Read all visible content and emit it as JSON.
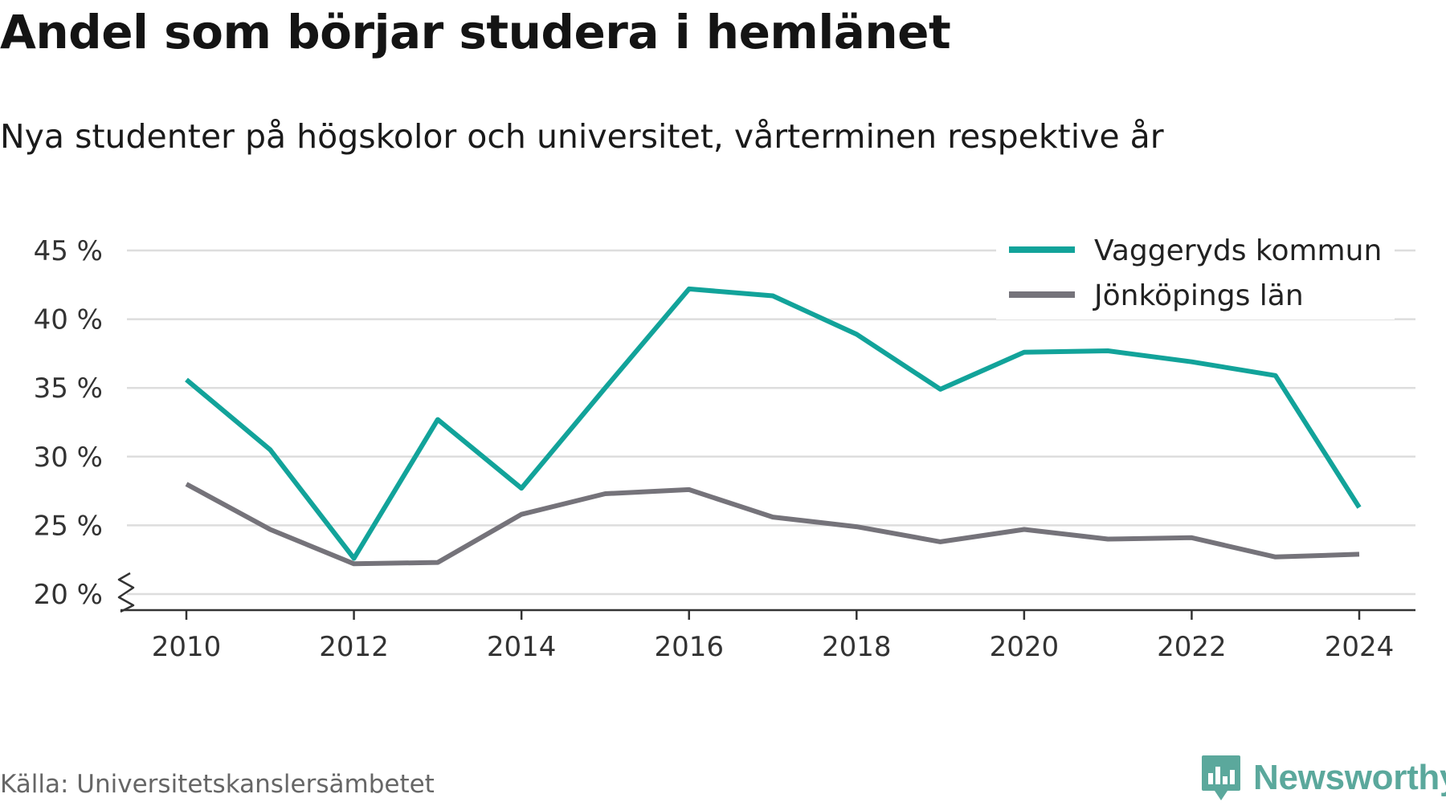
{
  "header": {
    "title": "Andel som börjar studera i hemlänet",
    "subtitle": "Nya studenter på högskolor och universitet, vårterminen respektive år"
  },
  "footer": {
    "source": "Källa: Universitetskanslersämbetet",
    "brand": "Newsworthy",
    "brand_icon": "bar-chart-pin-icon"
  },
  "colors": {
    "vaggeryd": "#12a39a",
    "jonkoping": "#75737a",
    "grid": "#dddddd",
    "axis": "#333333",
    "brand": "#5ba89c"
  },
  "chart_data": {
    "type": "line",
    "title": "Andel som börjar studera i hemlänet",
    "subtitle": "Nya studenter på högskolor och universitet, vårterminen respektive år",
    "xlabel": "",
    "ylabel": "",
    "x": [
      2010,
      2011,
      2012,
      2013,
      2014,
      2015,
      2016,
      2017,
      2018,
      2019,
      2020,
      2021,
      2022,
      2023,
      2024
    ],
    "x_ticks": [
      "2010",
      "2012",
      "2014",
      "2016",
      "2018",
      "2020",
      "2022",
      "2024"
    ],
    "y_ticks": [
      "20 %",
      "25 %",
      "30 %",
      "35 %",
      "40 %",
      "45 %"
    ],
    "ylim": [
      20,
      45
    ],
    "y_axis_break": true,
    "grid": true,
    "legend_position": "top-right",
    "series": [
      {
        "name": "Vaggeryds kommun",
        "color": "#12a39a",
        "values": [
          35.6,
          30.5,
          22.6,
          32.7,
          27.7,
          35.0,
          42.2,
          41.7,
          38.9,
          34.9,
          37.6,
          37.7,
          36.9,
          35.9,
          26.3
        ]
      },
      {
        "name": "Jönköpings län",
        "color": "#75737a",
        "values": [
          28.0,
          24.7,
          22.2,
          22.3,
          25.8,
          27.3,
          27.6,
          25.6,
          24.9,
          23.8,
          24.7,
          24.0,
          24.1,
          22.7,
          22.9
        ]
      }
    ]
  }
}
